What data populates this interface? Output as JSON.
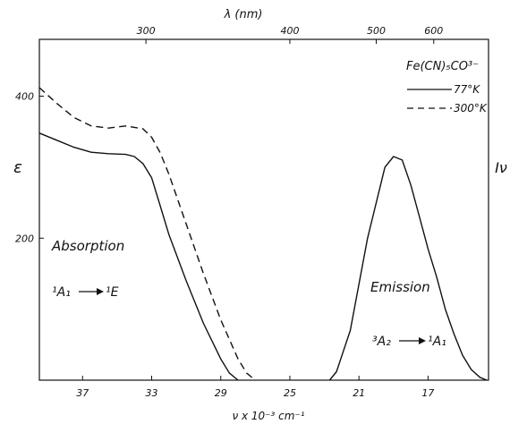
{
  "chart_data": {
    "type": "line",
    "title": "",
    "xlabel": "ν x 10⁻³ cm⁻¹",
    "top_xlabel": "λ (nm)",
    "ylabel_left": "ε",
    "ylabel_right": "Iν",
    "xlim": [
      39.5,
      13.5
    ],
    "ylim_left": [
      0,
      480
    ],
    "x_ticks": [
      "37",
      "33",
      "29",
      "25",
      "21",
      "17"
    ],
    "x_tick_values": [
      37,
      33,
      29,
      25,
      21,
      17
    ],
    "top_ticks": [
      "300",
      "400",
      "500",
      "600"
    ],
    "top_tick_wavenumbers": [
      33.33,
      25.0,
      20.0,
      16.67
    ],
    "y_ticks": [
      "200",
      "400"
    ],
    "y_tick_values": [
      200,
      400
    ],
    "legend": {
      "title": "Fe(CN)₅CO³⁻",
      "placement": "top-right",
      "entries": [
        "77°K",
        "300°K"
      ]
    },
    "series": [
      {
        "name": "77°K",
        "style": "solid",
        "x": [
          39.5,
          38.5,
          37.5,
          36.5,
          35.5,
          34.5,
          34.0,
          33.5,
          33.0,
          32.5,
          32.0,
          31.0,
          30.0,
          29.0,
          28.5,
          28.0
        ],
        "y": [
          348,
          338,
          328,
          321,
          319,
          318,
          315,
          305,
          285,
          245,
          205,
          140,
          80,
          30,
          10,
          0
        ]
      },
      {
        "name": "300°K",
        "style": "dashed",
        "x": [
          39.5,
          38.5,
          37.5,
          36.5,
          35.5,
          34.5,
          33.5,
          33.0,
          32.5,
          32.0,
          31.0,
          30.0,
          29.0,
          28.0,
          27.5,
          27.0
        ],
        "y": [
          412,
          390,
          370,
          358,
          355,
          358,
          354,
          342,
          320,
          290,
          220,
          150,
          85,
          30,
          10,
          0
        ]
      },
      {
        "name": "Emission",
        "style": "solid",
        "x": [
          22.7,
          22.3,
          21.5,
          20.5,
          19.5,
          19.0,
          18.5,
          18.0,
          17.5,
          17.0,
          16.5,
          16.0,
          15.5,
          15.0,
          14.5,
          14.0,
          13.6
        ],
        "y": [
          0,
          12,
          70,
          200,
          300,
          315,
          310,
          275,
          230,
          185,
          145,
          100,
          65,
          35,
          15,
          4,
          0
        ]
      }
    ],
    "annotations": {
      "absorption_label": "Absorption",
      "emission_label": "Emission",
      "absorption_transition": {
        "from": "¹A₁",
        "to": "¹E"
      },
      "emission_transition": {
        "from": "³A₂",
        "to": "¹A₁"
      }
    }
  }
}
